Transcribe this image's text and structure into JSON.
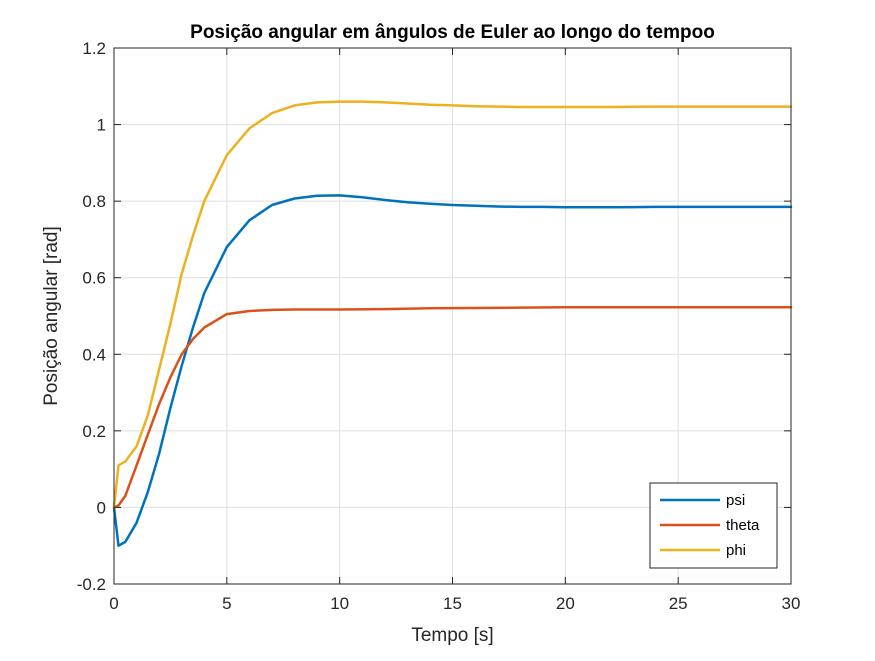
{
  "chart_data": {
    "type": "line",
    "title": "Posição angular em ângulos de Euler ao longo do tempoo",
    "xlabel": "Tempo [s]",
    "ylabel": "Posição angular [rad]",
    "xlim": [
      0,
      30
    ],
    "ylim": [
      -0.2,
      1.2
    ],
    "xticks": [
      0,
      5,
      10,
      15,
      20,
      25,
      30
    ],
    "xtick_labels": [
      "0",
      "5",
      "10",
      "15",
      "20",
      "25",
      "30"
    ],
    "yticks": [
      -0.2,
      0,
      0.2,
      0.4,
      0.6,
      0.8,
      1,
      1.2
    ],
    "ytick_labels": [
      "-0.2",
      "0",
      "0.2",
      "0.4",
      "0.6",
      "0.8",
      "1",
      "1.2"
    ],
    "grid": true,
    "legend_position": "bottom-right",
    "series": [
      {
        "name": "psi",
        "color": "#0072BD",
        "x": [
          0,
          0.2,
          0.5,
          1,
          1.5,
          2,
          2.5,
          3,
          3.5,
          4,
          5,
          6,
          7,
          8,
          9,
          10,
          11,
          12,
          13,
          14,
          15,
          16,
          17,
          18,
          19,
          20,
          22,
          24,
          26,
          28,
          30
        ],
        "y": [
          0,
          -0.1,
          -0.09,
          -0.04,
          0.04,
          0.14,
          0.26,
          0.37,
          0.47,
          0.56,
          0.68,
          0.75,
          0.79,
          0.807,
          0.814,
          0.815,
          0.81,
          0.803,
          0.797,
          0.793,
          0.79,
          0.788,
          0.786,
          0.785,
          0.785,
          0.784,
          0.784,
          0.785,
          0.785,
          0.785,
          0.785
        ]
      },
      {
        "name": "theta",
        "color": "#D95319",
        "x": [
          0,
          0.2,
          0.5,
          1,
          1.5,
          2,
          2.5,
          3,
          3.5,
          4,
          5,
          6,
          7,
          8,
          9,
          10,
          12,
          14,
          16,
          18,
          20,
          22,
          24,
          26,
          28,
          30
        ],
        "y": [
          0,
          0.005,
          0.03,
          0.11,
          0.19,
          0.27,
          0.34,
          0.4,
          0.44,
          0.47,
          0.505,
          0.513,
          0.516,
          0.517,
          0.517,
          0.517,
          0.518,
          0.52,
          0.521,
          0.522,
          0.523,
          0.523,
          0.523,
          0.523,
          0.523,
          0.523
        ]
      },
      {
        "name": "phi",
        "color": "#EDB120",
        "x": [
          0,
          0.2,
          0.5,
          1,
          1.5,
          2,
          2.5,
          3,
          3.5,
          4,
          5,
          6,
          7,
          8,
          9,
          10,
          11,
          12,
          13,
          14,
          15,
          16,
          17,
          18,
          19,
          20,
          22,
          24,
          26,
          28,
          30
        ],
        "y": [
          0,
          0.11,
          0.12,
          0.16,
          0.24,
          0.36,
          0.48,
          0.61,
          0.71,
          0.8,
          0.92,
          0.99,
          1.03,
          1.05,
          1.058,
          1.06,
          1.06,
          1.058,
          1.055,
          1.052,
          1.05,
          1.048,
          1.047,
          1.046,
          1.046,
          1.046,
          1.046,
          1.047,
          1.047,
          1.047,
          1.047
        ]
      }
    ]
  }
}
